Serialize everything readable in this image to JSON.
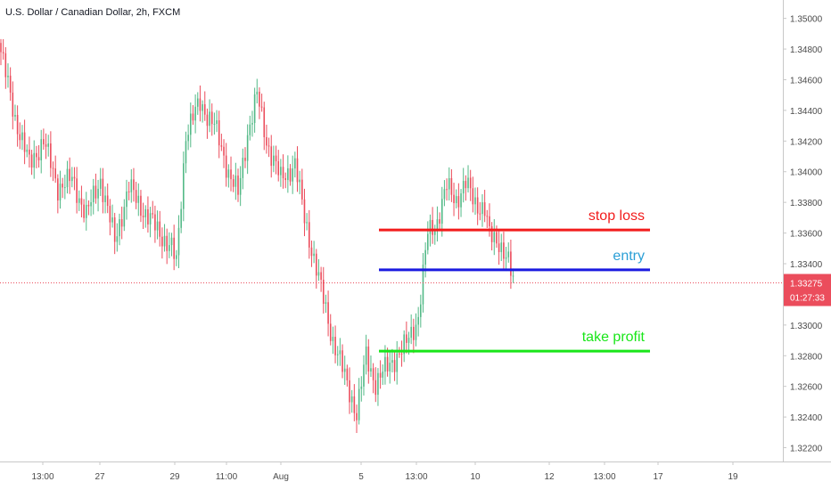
{
  "header": {
    "title": "U.S. Dollar / Canadian Dollar, 2h, FXCM"
  },
  "colors": {
    "up": "#53b987",
    "down": "#eb4d5c",
    "stop_loss": "#f21c1c",
    "entry": "#1a1ae0",
    "take_profit": "#19e619",
    "entry_text": "#2b9fd6",
    "price_badge": "#eb4d5c",
    "axis_text": "#4a4a4a"
  },
  "price_badge": {
    "price": "1.33275",
    "countdown": "01:27:33"
  },
  "chart_data": {
    "type": "candlestick",
    "title": "U.S. Dollar / Canadian Dollar, 2h, FXCM",
    "ylim": [
      1.3211,
      1.3512
    ],
    "y_ticks": [
      "1.35000",
      "1.34800",
      "1.34600",
      "1.34400",
      "1.34200",
      "1.34000",
      "1.33800",
      "1.33600",
      "1.33400",
      "1.33200",
      "1.33000",
      "1.32800",
      "1.32600",
      "1.32400",
      "1.32200"
    ],
    "x_ticks": [
      "13:00",
      "27",
      "29",
      "11:00",
      "Aug",
      "5",
      "13:00",
      "10",
      "12",
      "13:00",
      "17",
      "19"
    ],
    "last_price": 1.33275,
    "levels": [
      {
        "name": "stop loss",
        "price": 1.3362,
        "color": "#f21c1c",
        "label_color": "#f21c1c"
      },
      {
        "name": "entry",
        "price": 1.3336,
        "color": "#1a1ae0",
        "label_color": "#2b9fd6"
      },
      {
        "name": "take profit",
        "price": 1.3283,
        "color": "#19e619",
        "label_color": "#19e619"
      }
    ],
    "series_anchors": [
      [
        0,
        1.3478
      ],
      [
        6,
        1.3435
      ],
      [
        12,
        1.3405
      ],
      [
        18,
        1.342
      ],
      [
        24,
        1.339
      ],
      [
        30,
        1.3395
      ],
      [
        36,
        1.3372
      ],
      [
        42,
        1.3395
      ],
      [
        48,
        1.3355
      ],
      [
        54,
        1.339
      ],
      [
        60,
        1.3375
      ],
      [
        66,
        1.3362
      ],
      [
        72,
        1.335
      ],
      [
        74,
        1.334
      ],
      [
        78,
        1.3425
      ],
      [
        84,
        1.3445
      ],
      [
        90,
        1.343
      ],
      [
        96,
        1.34
      ],
      [
        100,
        1.3385
      ],
      [
        104,
        1.3425
      ],
      [
        108,
        1.345
      ],
      [
        112,
        1.342
      ],
      [
        118,
        1.3395
      ],
      [
        124,
        1.3405
      ],
      [
        128,
        1.337
      ],
      [
        134,
        1.333
      ],
      [
        140,
        1.329
      ],
      [
        146,
        1.3262
      ],
      [
        150,
        1.3242
      ],
      [
        154,
        1.328
      ],
      [
        158,
        1.3262
      ],
      [
        164,
        1.3275
      ],
      [
        170,
        1.3285
      ],
      [
        176,
        1.3305
      ],
      [
        180,
        1.336
      ],
      [
        184,
        1.3368
      ],
      [
        188,
        1.339
      ],
      [
        192,
        1.3382
      ],
      [
        196,
        1.3392
      ],
      [
        200,
        1.338
      ],
      [
        204,
        1.3375
      ],
      [
        206,
        1.3358
      ],
      [
        210,
        1.3355
      ],
      [
        214,
        1.334
      ],
      [
        216,
        1.3328
      ]
    ]
  }
}
